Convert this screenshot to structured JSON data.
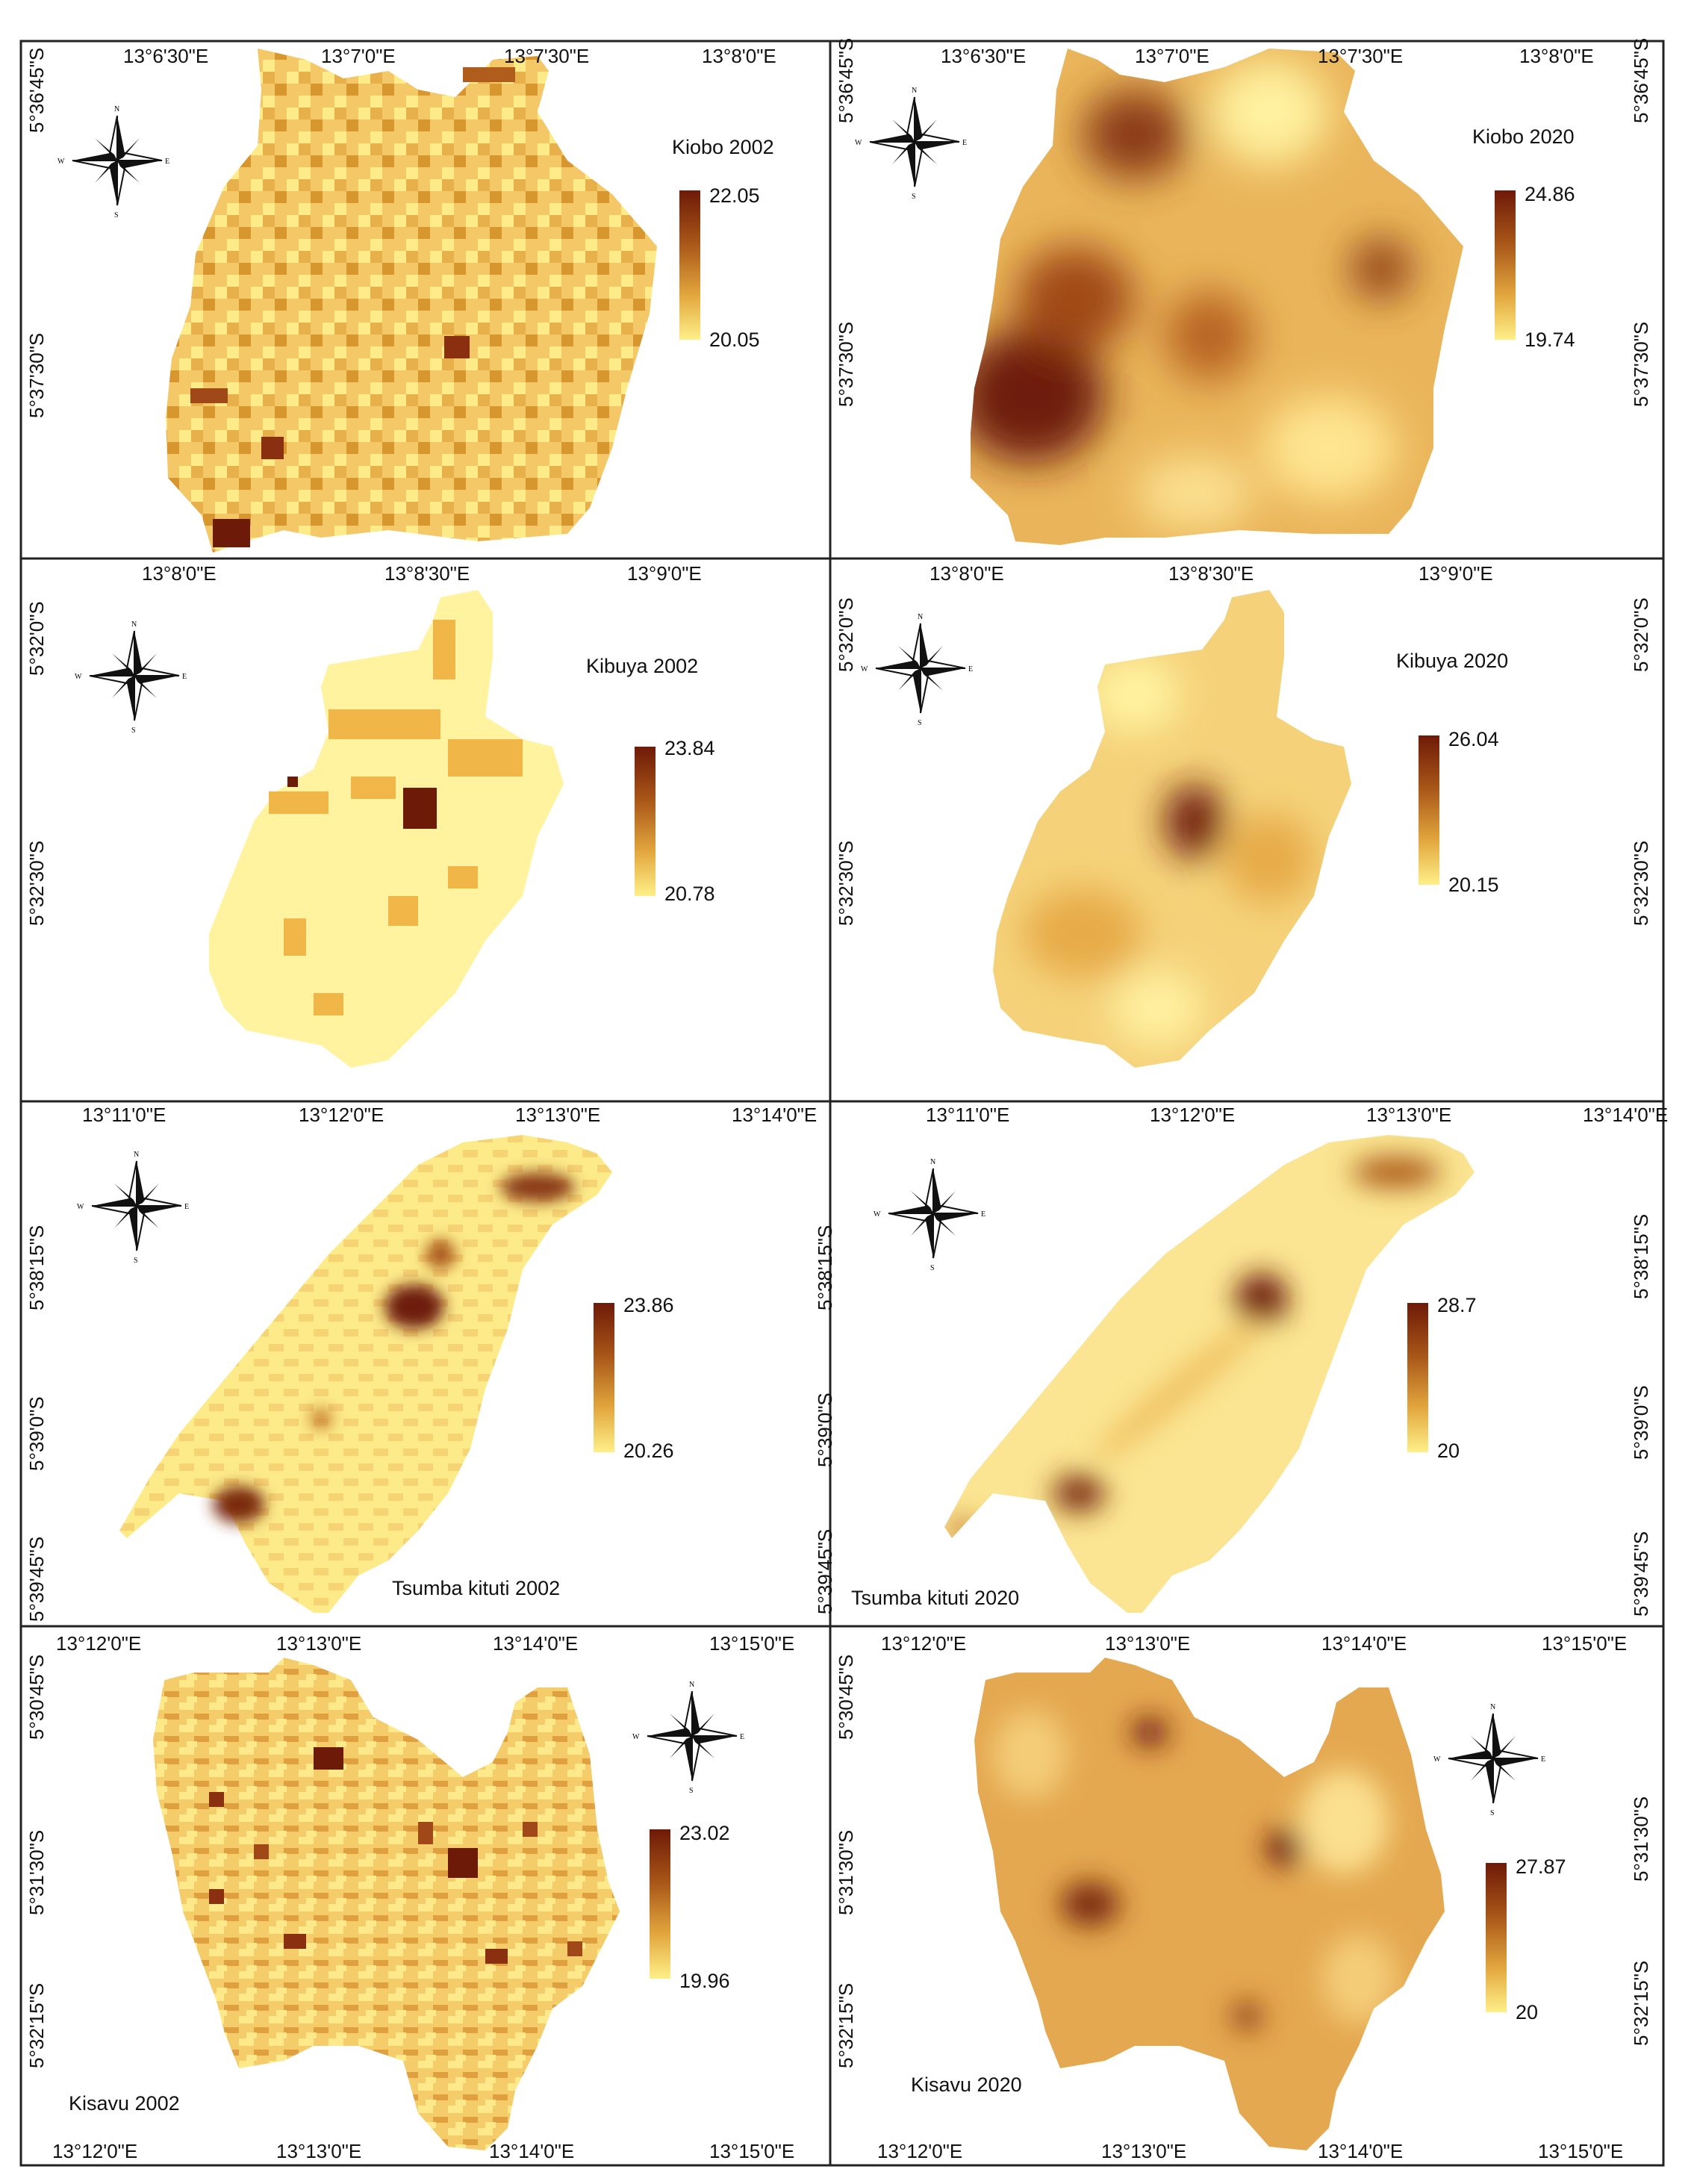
{
  "colors": {
    "low": "#fff3a0",
    "mid": "#f0c060",
    "high": "#6e1a08",
    "frame": "#222222"
  },
  "icons": {
    "north_arrow": "compass-rose-icon"
  },
  "compass": {
    "n": "N",
    "s": "S",
    "e": "E",
    "w": "W"
  },
  "panels": [
    {
      "title": "Kiobo 2002",
      "legend_max": "22.05",
      "legend_min": "20.05",
      "top_lon": [
        "13°6'30\"E",
        "13°7'0\"E",
        "13°7'30\"E",
        "13°8'0\"E"
      ],
      "left_lat": [
        "5°36'45\"S",
        "5°37'30\"S"
      ],
      "right_lat": [],
      "bottom_lon": []
    },
    {
      "title": "Kiobo 2020",
      "legend_max": "24.86",
      "legend_min": "19.74",
      "top_lon": [
        "13°6'30\"E",
        "13°7'0\"E",
        "13°7'30\"E",
        "13°8'0\"E"
      ],
      "left_lat": [
        "5°36'45\"S",
        "5°37'30\"S"
      ],
      "right_lat": [
        "5°36'45\"S",
        "5°37'30\"S"
      ],
      "bottom_lon": []
    },
    {
      "title": "Kibuya 2002",
      "legend_max": "23.84",
      "legend_min": "20.78",
      "top_lon": [
        "13°8'0\"E",
        "13°8'30\"E",
        "13°9'0\"E"
      ],
      "left_lat": [
        "5°32'0\"S",
        "5°32'30\"S"
      ],
      "right_lat": [],
      "bottom_lon": []
    },
    {
      "title": "Kibuya 2020",
      "legend_max": "26.04",
      "legend_min": "20.15",
      "top_lon": [
        "13°8'0\"E",
        "13°8'30\"E",
        "13°9'0\"E"
      ],
      "left_lat": [
        "5°32'0\"S",
        "5°32'30\"S"
      ],
      "right_lat": [
        "5°32'0\"S",
        "5°32'30\"S"
      ],
      "bottom_lon": []
    },
    {
      "title": "Tsumba kituti 2002",
      "legend_max": "23.86",
      "legend_min": "20.26",
      "top_lon": [
        "13°11'0\"E",
        "13°12'0\"E",
        "13°13'0\"E",
        "13°14'0\"E"
      ],
      "left_lat": [
        "5°38'15\"S",
        "5°39'0\"S",
        "5°39'45\"S"
      ],
      "right_lat": [],
      "bottom_lon": []
    },
    {
      "title": "Tsumba kituti 2020",
      "legend_max": "28.7",
      "legend_min": "20",
      "top_lon": [
        "13°11'0\"E",
        "13°12'0\"E",
        "13°13'0\"E",
        "13°14'0\"E"
      ],
      "left_lat": [
        "5°38'15\"S",
        "5°39'0\"S",
        "5°39'45\"S"
      ],
      "right_lat": [
        "5°38'15\"S",
        "5°39'0\"S",
        "5°39'45\"S"
      ],
      "bottom_lon": []
    },
    {
      "title": "Kisavu 2002",
      "legend_max": "23.02",
      "legend_min": "19.96",
      "top_lon": [
        "13°12'0\"E",
        "13°13'0\"E",
        "13°14'0\"E",
        "13°15'0\"E"
      ],
      "left_lat": [
        "5°30'45\"S",
        "5°31'30\"S",
        "5°32'15\"S"
      ],
      "right_lat": [],
      "bottom_lon": [
        "13°12'0\"E",
        "13°13'0\"E",
        "13°14'0\"E",
        "13°15'0\"E"
      ]
    },
    {
      "title": "Kisavu 2020",
      "legend_max": "27.87",
      "legend_min": "20",
      "top_lon": [
        "13°12'0\"E",
        "13°13'0\"E",
        "13°14'0\"E",
        "13°15'0\"E"
      ],
      "left_lat": [
        "5°30'45\"S",
        "5°31'30\"S",
        "5°32'15\"S"
      ],
      "right_lat": [
        "5°31'30\"S",
        "5°32'15\"S"
      ],
      "bottom_lon": [
        "13°12'0\"E",
        "13°13'0\"E",
        "13°14'0\"E",
        "13°15'0\"E"
      ]
    }
  ]
}
